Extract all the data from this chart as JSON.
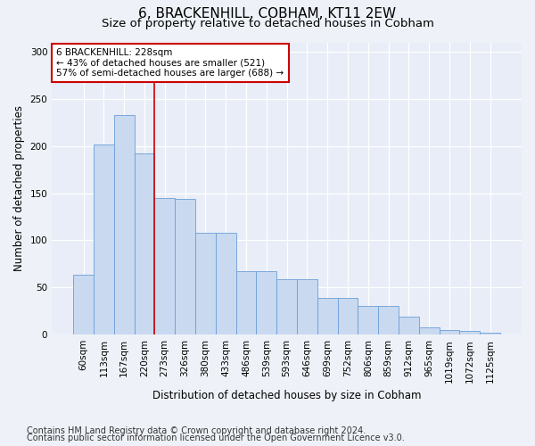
{
  "title": "6, BRACKENHILL, COBHAM, KT11 2EW",
  "subtitle": "Size of property relative to detached houses in Cobham",
  "xlabel": "Distribution of detached houses by size in Cobham",
  "ylabel": "Number of detached properties",
  "footnote1": "Contains HM Land Registry data © Crown copyright and database right 2024.",
  "footnote2": "Contains public sector information licensed under the Open Government Licence v3.0.",
  "bar_labels": [
    "60sqm",
    "113sqm",
    "167sqm",
    "220sqm",
    "273sqm",
    "326sqm",
    "380sqm",
    "433sqm",
    "486sqm",
    "539sqm",
    "593sqm",
    "646sqm",
    "699sqm",
    "752sqm",
    "806sqm",
    "859sqm",
    "912sqm",
    "965sqm",
    "1019sqm",
    "1072sqm",
    "1125sqm"
  ],
  "bar_heights": [
    63,
    202,
    233,
    192,
    145,
    144,
    108,
    108,
    67,
    67,
    59,
    59,
    39,
    39,
    30,
    30,
    19,
    8,
    5,
    4,
    2
  ],
  "bar_color": "#c9d9f0",
  "bar_edge_color": "#6a9fd8",
  "vline_x": 3.5,
  "vline_color": "#cc0000",
  "annotation_text": "6 BRACKENHILL: 228sqm\n← 43% of detached houses are smaller (521)\n57% of semi-detached houses are larger (688) →",
  "annotation_box_color": "#ffffff",
  "annotation_box_edge": "#cc0000",
  "ylim": [
    0,
    310
  ],
  "yticks": [
    0,
    50,
    100,
    150,
    200,
    250,
    300
  ],
  "title_fontsize": 11,
  "subtitle_fontsize": 9.5,
  "axis_fontsize": 8.5,
  "tick_fontsize": 7.5,
  "annotation_fontsize": 7.5,
  "footnote_fontsize": 7,
  "bg_color": "#eef2f8",
  "plot_bg_color": "#e8edf8"
}
